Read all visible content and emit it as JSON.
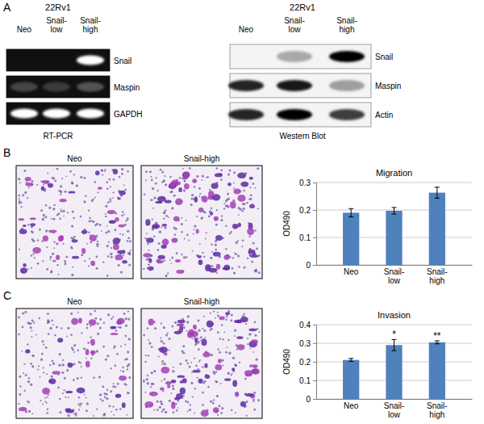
{
  "figure": {
    "panels": [
      {
        "label": "A",
        "rt_pcr": {
          "cell_line": "22Rv1",
          "title": "RT-PCR",
          "lanes": [
            "Neo",
            "Snail-low",
            "Snail-high"
          ],
          "rows": [
            "Snail",
            "Maspin",
            "GAPDH"
          ]
        },
        "western_blot": {
          "cell_line": "22Rv1",
          "title": "Western Blot",
          "lanes": [
            "Neo",
            "Snail-low",
            "Snail-high"
          ],
          "rows": [
            "Snail",
            "Maspin",
            "Actin"
          ]
        }
      },
      {
        "label": "B",
        "images": [
          "Neo",
          "Snail-high"
        ]
      },
      {
        "label": "C",
        "images": [
          "Neo",
          "Snail-high"
        ]
      }
    ]
  },
  "chart_data": [
    {
      "type": "bar",
      "title": "Migration",
      "y_label": "OD490",
      "categories": [
        "Neo",
        "Snail-low",
        "Snail-high"
      ],
      "values": [
        0.19,
        0.197,
        0.263
      ],
      "errors": [
        0.015,
        0.012,
        0.02
      ],
      "color": "#4f81bd",
      "ylim": [
        0,
        0.3
      ],
      "yticks": [
        0,
        0.1,
        0.2,
        0.3
      ],
      "grid": true
    },
    {
      "type": "bar",
      "title": "Invasion",
      "y_label": "OD490",
      "categories": [
        "Neo",
        "Snail-low",
        "Snail-high"
      ],
      "values": [
        0.21,
        0.29,
        0.305
      ],
      "errors": [
        0.008,
        0.03,
        0.008
      ],
      "color": "#4f81bd",
      "ylim": [
        0,
        0.4
      ],
      "yticks": [
        0,
        0.1,
        0.2,
        0.3,
        0.4
      ],
      "grid": true,
      "annotations": [
        {
          "category": "Snail-low",
          "text": "*"
        },
        {
          "category": "Snail-high",
          "text": "**"
        }
      ]
    }
  ]
}
